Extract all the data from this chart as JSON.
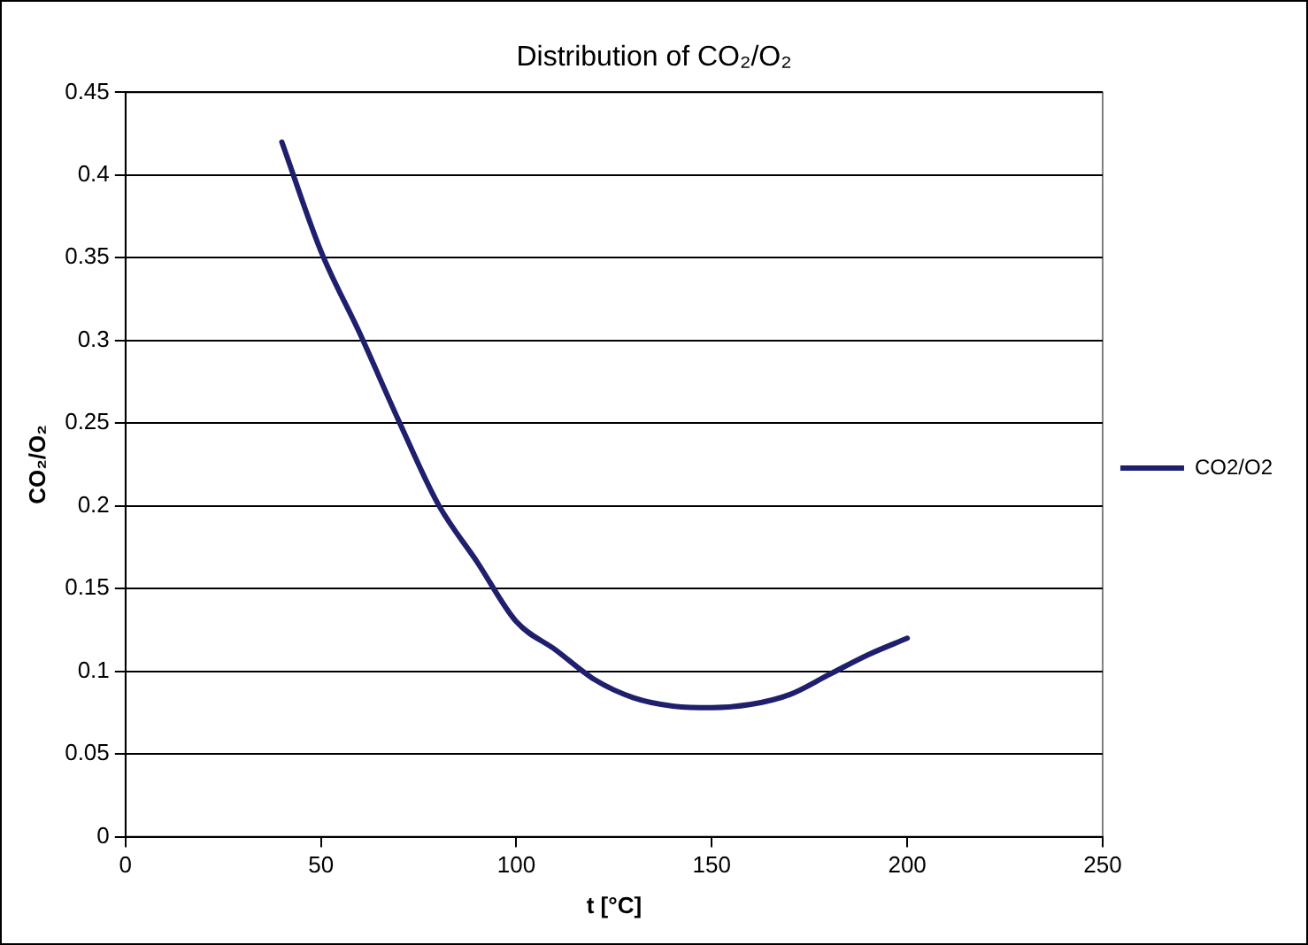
{
  "chart_data": {
    "type": "line",
    "title": "Distribution of CO₂/O₂",
    "xlabel": "t [°C]",
    "ylabel": "CO₂/O₂",
    "x": [
      40,
      50,
      60,
      70,
      80,
      90,
      100,
      110,
      120,
      130,
      140,
      150,
      160,
      170,
      180,
      190,
      200
    ],
    "series": [
      {
        "name": "CO2/O2",
        "color": "#1f1f6e",
        "values": [
          0.42,
          0.354,
          0.304,
          0.251,
          0.201,
          0.166,
          0.13,
          0.113,
          0.095,
          0.084,
          0.079,
          0.078,
          0.08,
          0.086,
          0.098,
          0.11,
          0.12
        ]
      }
    ],
    "xlim": [
      0,
      250
    ],
    "xticks": [
      0,
      50,
      100,
      150,
      200,
      250
    ],
    "ylim": [
      0,
      0.45
    ],
    "yticks": [
      0,
      0.05,
      0.1,
      0.15,
      0.2,
      0.25,
      0.3,
      0.35,
      0.4,
      0.45
    ],
    "grid": "y",
    "legend": "right",
    "marker": "none",
    "line_style": "solid"
  }
}
